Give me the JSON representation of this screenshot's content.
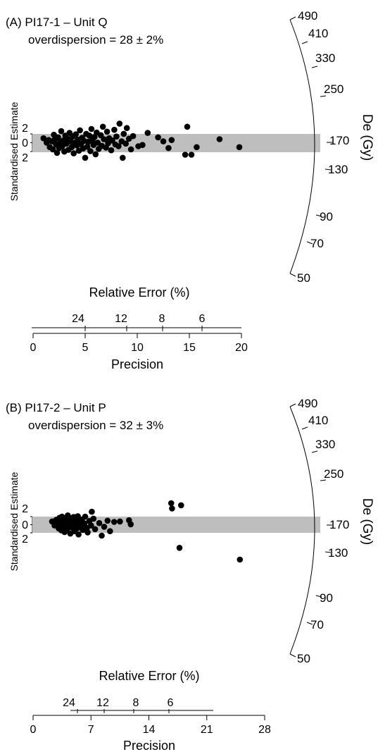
{
  "chart_data": [
    {
      "type": "scatter",
      "subtype": "radial-plot",
      "title": "(A) PI17-1 – Unit Q",
      "subtitle": "overdispersion = 28 ± 2%",
      "ylabel": "Standardised Estimate",
      "y_tick_labels": [
        "2",
        "0",
        "2"
      ],
      "x_axis": {
        "label": "Precision",
        "ticks": [
          0,
          5,
          10,
          15,
          20
        ],
        "xlim": [
          0,
          20
        ]
      },
      "relative_error_axis": {
        "label": "Relative Error (%)",
        "ticks": [
          24,
          12,
          8,
          6
        ]
      },
      "de_axis": {
        "label": "De (Gy)",
        "ticks": [
          490,
          410,
          330,
          250,
          170,
          130,
          90,
          70,
          50
        ],
        "central_value": 170
      },
      "band": {
        "z": [
          -2,
          2
        ],
        "color": "#bebebe"
      },
      "point_color": "#000000",
      "points": [
        {
          "x": 1.0,
          "y": 1.0
        },
        {
          "x": 1.3,
          "y": 0.0
        },
        {
          "x": 1.5,
          "y": 0.6
        },
        {
          "x": 1.6,
          "y": -1.0
        },
        {
          "x": 1.8,
          "y": 0.3
        },
        {
          "x": 1.9,
          "y": -1.5
        },
        {
          "x": 2.0,
          "y": 1.8
        },
        {
          "x": 2.1,
          "y": 0.8
        },
        {
          "x": 2.2,
          "y": -0.4
        },
        {
          "x": 2.3,
          "y": -2.3
        },
        {
          "x": 2.4,
          "y": 1.2
        },
        {
          "x": 2.5,
          "y": -1.2
        },
        {
          "x": 2.6,
          "y": 0.1
        },
        {
          "x": 2.7,
          "y": 2.6
        },
        {
          "x": 2.8,
          "y": -0.8
        },
        {
          "x": 2.9,
          "y": 0.5
        },
        {
          "x": 3.0,
          "y": -2.0
        },
        {
          "x": 3.1,
          "y": 1.6
        },
        {
          "x": 3.2,
          "y": -0.2
        },
        {
          "x": 3.3,
          "y": 0.9
        },
        {
          "x": 3.4,
          "y": -1.6
        },
        {
          "x": 3.5,
          "y": 2.2
        },
        {
          "x": 3.6,
          "y": 0.3
        },
        {
          "x": 3.7,
          "y": -1.0
        },
        {
          "x": 3.8,
          "y": 1.4
        },
        {
          "x": 3.9,
          "y": -2.4
        },
        {
          "x": 4.0,
          "y": 0.0
        },
        {
          "x": 4.1,
          "y": 1.9
        },
        {
          "x": 4.2,
          "y": -0.6
        },
        {
          "x": 4.3,
          "y": 0.7
        },
        {
          "x": 4.4,
          "y": -1.8
        },
        {
          "x": 4.5,
          "y": 2.8
        },
        {
          "x": 4.6,
          "y": -0.3
        },
        {
          "x": 4.7,
          "y": 1.1
        },
        {
          "x": 4.8,
          "y": -1.3
        },
        {
          "x": 4.9,
          "y": 0.4
        },
        {
          "x": 5.0,
          "y": -3.4
        },
        {
          "x": 5.1,
          "y": 2.0
        },
        {
          "x": 5.2,
          "y": -0.9
        },
        {
          "x": 5.3,
          "y": 0.2
        },
        {
          "x": 5.4,
          "y": 1.6
        },
        {
          "x": 5.5,
          "y": -1.9
        },
        {
          "x": 5.6,
          "y": 3.1
        },
        {
          "x": 5.7,
          "y": 0.6
        },
        {
          "x": 5.8,
          "y": -0.5
        },
        {
          "x": 5.9,
          "y": 1.3
        },
        {
          "x": 6.0,
          "y": -2.6
        },
        {
          "x": 6.1,
          "y": 2.3
        },
        {
          "x": 6.2,
          "y": 0.0
        },
        {
          "x": 6.3,
          "y": -1.4
        },
        {
          "x": 6.5,
          "y": 1.7
        },
        {
          "x": 6.6,
          "y": -0.7
        },
        {
          "x": 6.7,
          "y": 3.6
        },
        {
          "x": 6.8,
          "y": 0.8
        },
        {
          "x": 7.0,
          "y": -1.1
        },
        {
          "x": 7.1,
          "y": 2.5
        },
        {
          "x": 7.2,
          "y": -0.1
        },
        {
          "x": 7.3,
          "y": 1.0
        },
        {
          "x": 7.5,
          "y": -1.7
        },
        {
          "x": 7.6,
          "y": 0.5
        },
        {
          "x": 7.8,
          "y": 2.9
        },
        {
          "x": 7.9,
          "y": -0.4
        },
        {
          "x": 8.0,
          "y": 1.4
        },
        {
          "x": 8.2,
          "y": -0.8
        },
        {
          "x": 8.3,
          "y": 4.3
        },
        {
          "x": 8.5,
          "y": 0.3
        },
        {
          "x": 8.6,
          "y": -3.4
        },
        {
          "x": 8.7,
          "y": 2.0
        },
        {
          "x": 8.9,
          "y": -0.2
        },
        {
          "x": 9.0,
          "y": 3.3
        },
        {
          "x": 9.2,
          "y": 0.9
        },
        {
          "x": 9.4,
          "y": -1.5
        },
        {
          "x": 9.6,
          "y": 1.5
        },
        {
          "x": 10.1,
          "y": -0.8
        },
        {
          "x": 10.5,
          "y": -0.5
        },
        {
          "x": 11.0,
          "y": 2.2
        },
        {
          "x": 12.0,
          "y": 1.2
        },
        {
          "x": 12.5,
          "y": 0.3
        },
        {
          "x": 13.0,
          "y": -1.2
        },
        {
          "x": 13.3,
          "y": 0.6
        },
        {
          "x": 14.6,
          "y": -2.7
        },
        {
          "x": 14.8,
          "y": 3.6
        },
        {
          "x": 15.2,
          "y": -2.7
        },
        {
          "x": 15.7,
          "y": -1.0
        },
        {
          "x": 17.9,
          "y": 0.8
        },
        {
          "x": 19.8,
          "y": -1.0
        }
      ]
    },
    {
      "type": "scatter",
      "subtype": "radial-plot",
      "title": "(B) PI17-2 – Unit P",
      "subtitle": "overdispersion = 32 ± 3%",
      "ylabel": "Standardised Estimate",
      "y_tick_labels": [
        "2",
        "0",
        "2"
      ],
      "x_axis": {
        "label": "Precision",
        "ticks": [
          0,
          7,
          14,
          21,
          28
        ],
        "xlim": [
          0,
          28
        ]
      },
      "relative_error_axis": {
        "label": "Relative Error (%)",
        "ticks": [
          24,
          12,
          8,
          6
        ]
      },
      "de_axis": {
        "label": "De (Gy)",
        "ticks": [
          490,
          410,
          330,
          250,
          170,
          130,
          90,
          70,
          50
        ],
        "central_value": 170
      },
      "band": {
        "z": [
          -2,
          2
        ],
        "color": "#bebebe"
      },
      "point_color": "#000000",
      "points": [
        {
          "x": 2.3,
          "y": 0.8
        },
        {
          "x": 2.6,
          "y": -0.2
        },
        {
          "x": 2.8,
          "y": 1.2
        },
        {
          "x": 3.0,
          "y": 0.2
        },
        {
          "x": 3.1,
          "y": -0.9
        },
        {
          "x": 3.2,
          "y": 1.7
        },
        {
          "x": 3.3,
          "y": 0.5
        },
        {
          "x": 3.4,
          "y": -1.4
        },
        {
          "x": 3.5,
          "y": 2.0
        },
        {
          "x": 3.6,
          "y": -0.5
        },
        {
          "x": 3.7,
          "y": 0.9
        },
        {
          "x": 3.8,
          "y": -1.8
        },
        {
          "x": 3.9,
          "y": 1.4
        },
        {
          "x": 4.0,
          "y": 0.1
        },
        {
          "x": 4.1,
          "y": -1.1
        },
        {
          "x": 4.2,
          "y": 2.3
        },
        {
          "x": 4.3,
          "y": -0.3
        },
        {
          "x": 4.4,
          "y": 0.7
        },
        {
          "x": 4.5,
          "y": -2.2
        },
        {
          "x": 4.6,
          "y": 1.6
        },
        {
          "x": 4.7,
          "y": -0.7
        },
        {
          "x": 4.8,
          "y": 0.4
        },
        {
          "x": 4.9,
          "y": 1.9
        },
        {
          "x": 5.0,
          "y": -1.6
        },
        {
          "x": 5.1,
          "y": 0.0
        },
        {
          "x": 5.2,
          "y": 1.1
        },
        {
          "x": 5.3,
          "y": -0.9
        },
        {
          "x": 5.4,
          "y": 2.1
        },
        {
          "x": 5.5,
          "y": -2.4
        },
        {
          "x": 5.6,
          "y": 0.6
        },
        {
          "x": 5.8,
          "y": -0.4
        },
        {
          "x": 5.9,
          "y": 1.3
        },
        {
          "x": 6.0,
          "y": -1.3
        },
        {
          "x": 6.2,
          "y": 0.3
        },
        {
          "x": 6.3,
          "y": 2.0
        },
        {
          "x": 6.5,
          "y": -0.8
        },
        {
          "x": 6.6,
          "y": -1.9
        },
        {
          "x": 6.8,
          "y": 0.9
        },
        {
          "x": 7.0,
          "y": -0.2
        },
        {
          "x": 7.1,
          "y": 3.2
        },
        {
          "x": 7.3,
          "y": 1.5
        },
        {
          "x": 7.5,
          "y": -1.1
        },
        {
          "x": 8.0,
          "y": 0.4
        },
        {
          "x": 8.3,
          "y": -2.7
        },
        {
          "x": 8.6,
          "y": -0.5
        },
        {
          "x": 9.0,
          "y": 1.0
        },
        {
          "x": 9.3,
          "y": -1.6
        },
        {
          "x": 9.8,
          "y": 0.7
        },
        {
          "x": 10.5,
          "y": 0.8
        },
        {
          "x": 11.6,
          "y": 1.1
        },
        {
          "x": 11.8,
          "y": 0.1
        },
        {
          "x": 16.7,
          "y": 5.3
        },
        {
          "x": 16.8,
          "y": 4.0
        },
        {
          "x": 17.9,
          "y": 4.8
        },
        {
          "x": 17.7,
          "y": -5.7
        },
        {
          "x": 25.0,
          "y": -8.6
        }
      ]
    }
  ]
}
